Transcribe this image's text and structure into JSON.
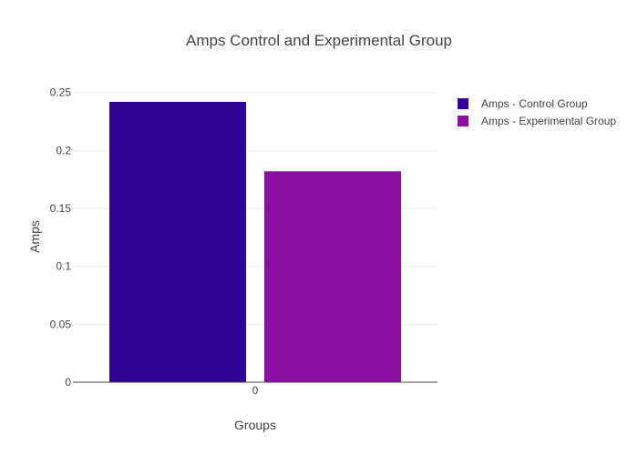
{
  "chart_data": {
    "type": "bar",
    "title": "Amps Control and Experimental Group",
    "xlabel": "Groups",
    "ylabel": "Amps",
    "categories": [
      "0"
    ],
    "ylim": [
      0,
      0.26
    ],
    "yticks": [
      0,
      0.05,
      0.1,
      0.15,
      0.2,
      0.25
    ],
    "ytick_labels": [
      "0",
      "0.05",
      "0.1",
      "0.15",
      "0.2",
      "0.25"
    ],
    "grid": true,
    "legend_position": "top-right",
    "series": [
      {
        "name": "Amps - Control Group",
        "values": [
          0.242
        ],
        "color": "#2e0594"
      },
      {
        "name": "Amps - Experimental Group",
        "values": [
          0.182
        ],
        "color": "#8c0ea3"
      }
    ]
  }
}
